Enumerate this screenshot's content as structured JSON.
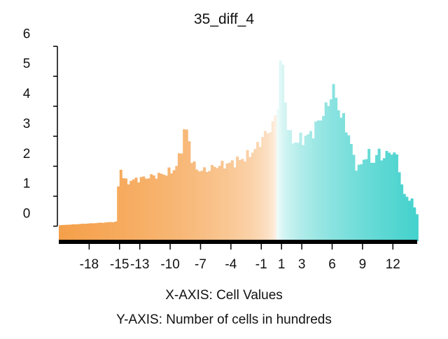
{
  "chart_data": {
    "type": "bar",
    "title": "35_diff_4",
    "xlabel": "X-AXIS: Cell Values",
    "ylabel": "Y-AXIS: Number of cells in hundreds",
    "xlim": [
      -21,
      14.4
    ],
    "ylim": [
      -0.5,
      6.1
    ],
    "bin_width": 0.25,
    "x_ticks": [
      -18,
      -15,
      -13,
      -10,
      -7,
      -4,
      -1,
      1,
      3,
      6,
      9,
      12
    ],
    "y_ticks": [
      0,
      1,
      2,
      3,
      4,
      5,
      6
    ],
    "grid": false,
    "legend": "none",
    "colors": {
      "negative": "#f5a04a",
      "zero": "#ffffff",
      "positive": "#45d2cd",
      "axis": "#000000"
    },
    "profile": [
      [
        -21.0,
        0.03
      ],
      [
        -19.5,
        0.06
      ],
      [
        -18.0,
        0.09
      ],
      [
        -16.5,
        0.12
      ],
      [
        -15.2,
        0.15
      ],
      [
        -15.1,
        1.75
      ],
      [
        -14.8,
        1.95
      ],
      [
        -14.5,
        1.45
      ],
      [
        -13.5,
        1.55
      ],
      [
        -12.0,
        1.65
      ],
      [
        -10.5,
        1.75
      ],
      [
        -9.5,
        1.9
      ],
      [
        -9.0,
        2.4
      ],
      [
        -8.7,
        3.0
      ],
      [
        -8.5,
        3.35
      ],
      [
        -8.2,
        2.95
      ],
      [
        -7.9,
        2.3
      ],
      [
        -7.5,
        1.9
      ],
      [
        -6.5,
        1.85
      ],
      [
        -5.5,
        2.0
      ],
      [
        -4.0,
        2.1
      ],
      [
        -2.5,
        2.3
      ],
      [
        -1.5,
        2.6
      ],
      [
        -1.0,
        2.9
      ],
      [
        -0.5,
        3.1
      ],
      [
        0.0,
        3.3
      ],
      [
        0.4,
        3.6
      ],
      [
        0.7,
        4.4
      ],
      [
        0.95,
        5.8
      ],
      [
        1.1,
        5.4
      ],
      [
        1.4,
        4.0
      ],
      [
        1.8,
        3.0
      ],
      [
        2.2,
        2.8
      ],
      [
        3.0,
        2.9
      ],
      [
        4.0,
        3.1
      ],
      [
        5.0,
        3.7
      ],
      [
        5.7,
        4.1
      ],
      [
        6.0,
        4.7
      ],
      [
        6.4,
        4.2
      ],
      [
        7.0,
        3.6
      ],
      [
        7.5,
        3.2
      ],
      [
        7.9,
        2.7
      ],
      [
        8.2,
        2.1
      ],
      [
        8.6,
        1.95
      ],
      [
        9.0,
        2.1
      ],
      [
        9.5,
        2.5
      ],
      [
        10.0,
        2.05
      ],
      [
        10.5,
        2.5
      ],
      [
        11.0,
        2.25
      ],
      [
        11.5,
        2.45
      ],
      [
        12.0,
        2.5
      ],
      [
        12.5,
        2.2
      ],
      [
        13.0,
        1.1
      ],
      [
        13.4,
        0.95
      ],
      [
        13.8,
        0.9
      ],
      [
        14.0,
        0.8
      ],
      [
        14.3,
        0.4
      ]
    ]
  }
}
